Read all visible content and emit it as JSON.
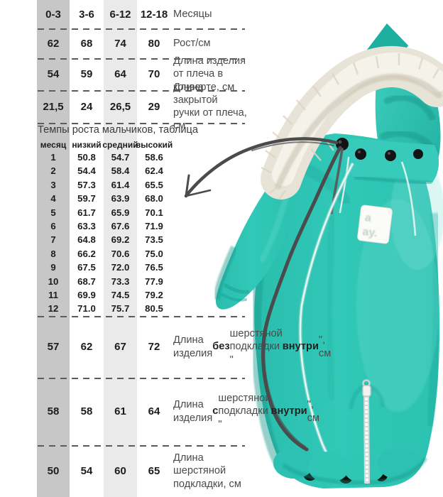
{
  "size_table": {
    "rows": [
      {
        "values": [
          "0-3",
          "3-6",
          "6-12",
          "12-18"
        ],
        "label": [
          {
            "t": "Месяцы"
          }
        ]
      },
      {
        "values": [
          "62",
          "68",
          "74",
          "80"
        ],
        "label": [
          {
            "t": "Рост/см"
          }
        ]
      },
      {
        "values": [
          "54",
          "59",
          "64",
          "70"
        ],
        "label": [
          {
            "t": "Длина изделия от плеча в конверте, см"
          }
        ]
      },
      {
        "values": [
          "21,5",
          "24",
          "26,5",
          "29"
        ],
        "label": [
          {
            "t": "Длина закрытой ручки от плеча, см"
          }
        ]
      },
      {
        "values": [
          "57",
          "62",
          "67",
          "72"
        ],
        "label": [
          {
            "t": "Длина изделия "
          },
          {
            "t": "без",
            "b": 1
          },
          {
            "t": " шерстяной подкладки \""
          },
          {
            "t": "внутри",
            "b": 1
          },
          {
            "t": "\", см"
          }
        ]
      },
      {
        "values": [
          "58",
          "58",
          "61",
          "64"
        ],
        "label": [
          {
            "t": "Длина изделия "
          },
          {
            "t": "с",
            "b": 1
          },
          {
            "t": " шерстяной подкладки \""
          },
          {
            "t": "внутри",
            "b": 1
          },
          {
            "t": "\", см"
          }
        ]
      },
      {
        "values": [
          "50",
          "54",
          "60",
          "65"
        ],
        "label": [
          {
            "t": "Длина шерстяной подкладки, см"
          }
        ]
      }
    ]
  },
  "growth_table": {
    "title": "Темпы роста мальчиков, таблица",
    "columns": [
      "месяц",
      "низкий",
      "средний",
      "высокий"
    ],
    "rows": [
      [
        "1",
        "50.8",
        "54.7",
        "58.6"
      ],
      [
        "2",
        "54.4",
        "58.4",
        "62.4"
      ],
      [
        "3",
        "57.3",
        "61.4",
        "65.5"
      ],
      [
        "4",
        "59.7",
        "63.9",
        "68.0"
      ],
      [
        "5",
        "61.7",
        "65.9",
        "70.1"
      ],
      [
        "6",
        "63.3",
        "67.6",
        "71.9"
      ],
      [
        "7",
        "64.8",
        "69.2",
        "73.5"
      ],
      [
        "8",
        "66.2",
        "70.6",
        "75.0"
      ],
      [
        "9",
        "67.5",
        "72.0",
        "76.5"
      ],
      [
        "10",
        "68.7",
        "73.3",
        "77.9"
      ],
      [
        "11",
        "69.9",
        "74.5",
        "79.2"
      ],
      [
        "12",
        "71.0",
        "75.7",
        "80.5"
      ]
    ]
  },
  "photo": {
    "patch_line1": "a",
    "patch_line2": "ay."
  },
  "colors": {
    "suit": "#2fc5b5",
    "suit_shadow": "#17a093",
    "suit_highlight": "#79e0d5",
    "fur": "#e8e3d7",
    "stripe_dark": "#c7c7c7",
    "stripe_light": "#eaeaea",
    "annotation": "#4b4b4b"
  }
}
